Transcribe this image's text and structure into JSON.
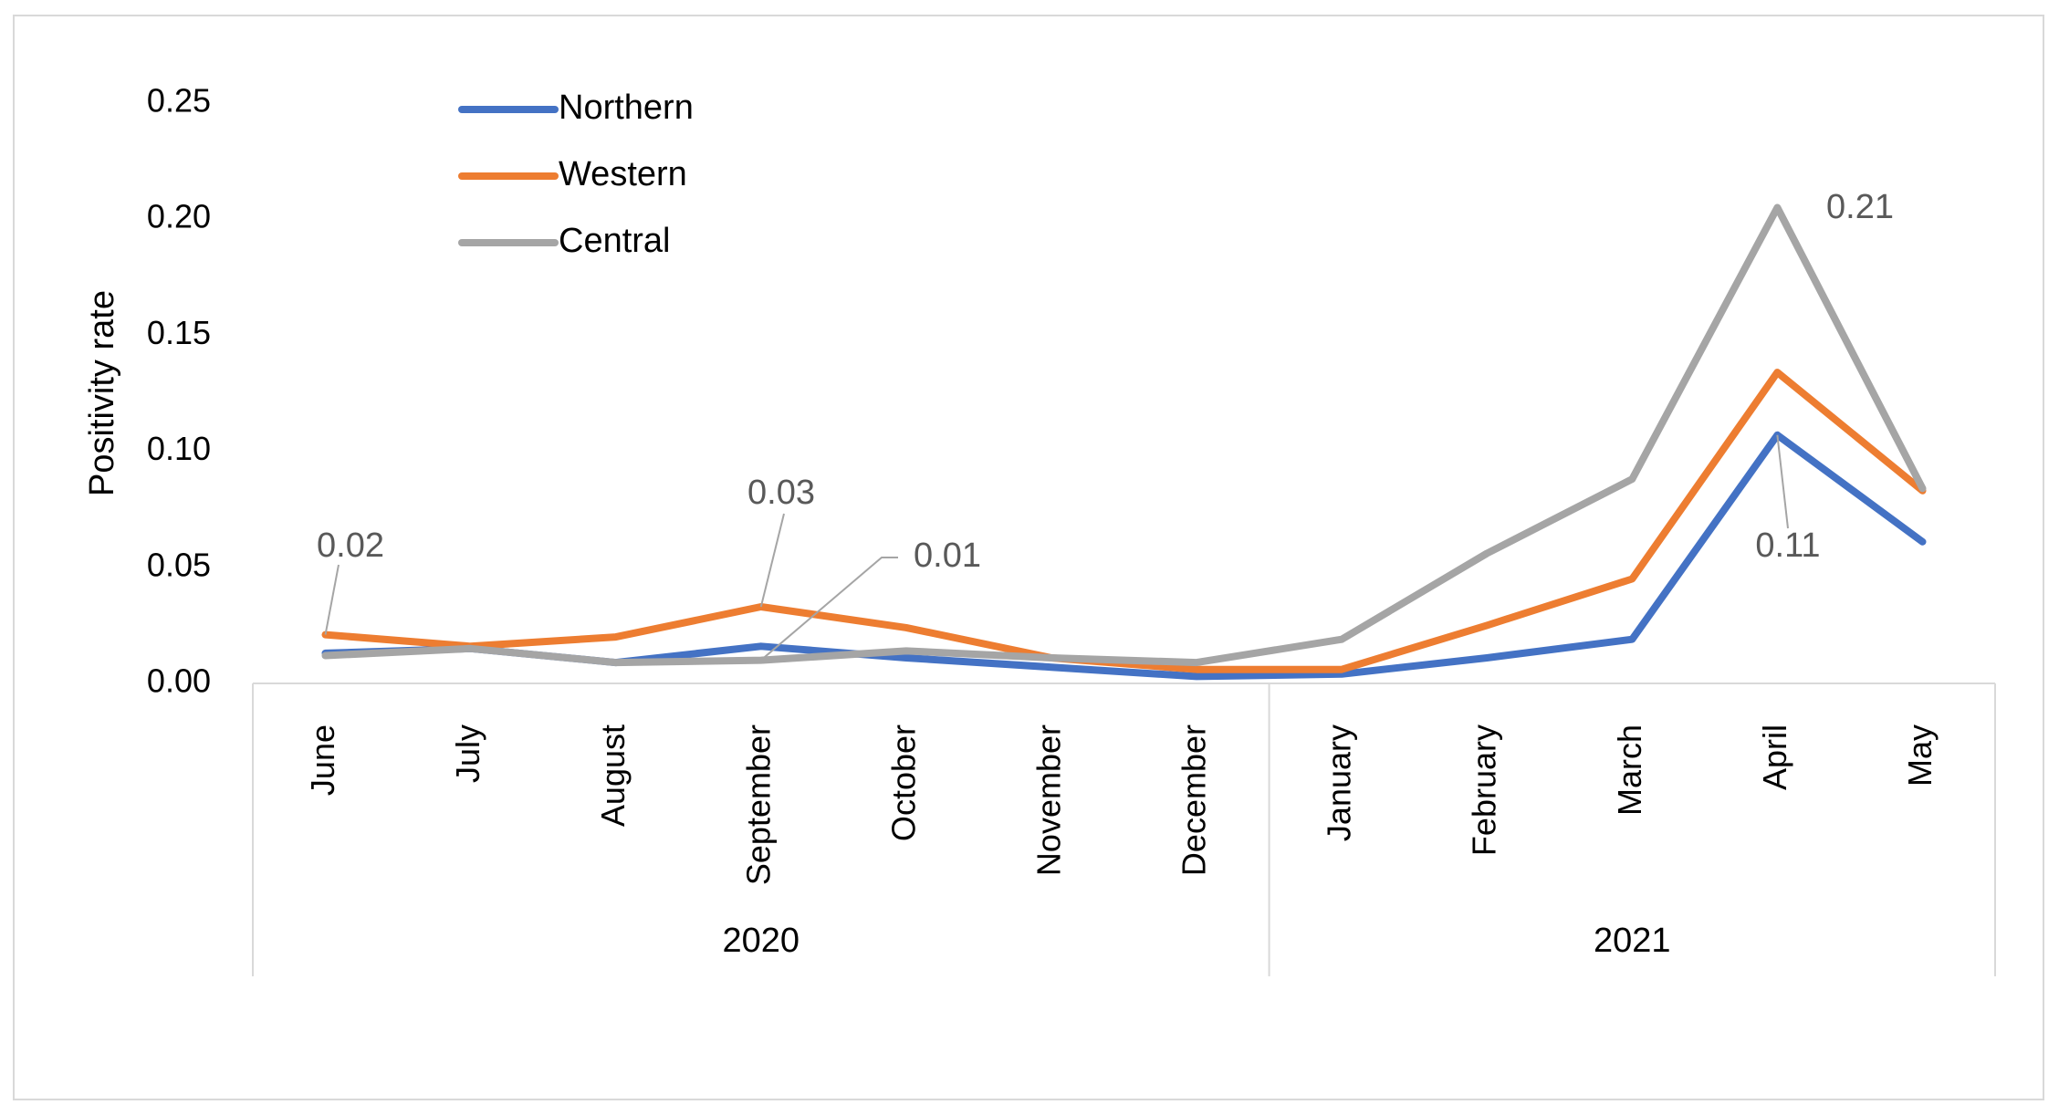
{
  "chart_data": {
    "type": "line",
    "title": "",
    "xlabel": "",
    "ylabel": "Positivity rate",
    "ylim": [
      0,
      0.25
    ],
    "yticks": [
      "0.00",
      "0.05",
      "0.10",
      "0.15",
      "0.20",
      "0.25"
    ],
    "categories": [
      "June",
      "July",
      "August",
      "September",
      "October",
      "November",
      "December",
      "January",
      "February",
      "March",
      "April",
      "May"
    ],
    "groups": [
      {
        "label": "2020",
        "span": 7
      },
      {
        "label": "2021",
        "span": 5
      }
    ],
    "series": [
      {
        "name": "Northern",
        "color": "#4472C4",
        "values": [
          0.013,
          0.015,
          0.009,
          0.016,
          0.011,
          0.007,
          0.003,
          0.004,
          0.011,
          0.019,
          0.107,
          0.061
        ]
      },
      {
        "name": "Western",
        "color": "#ED7D31",
        "values": [
          0.021,
          0.016,
          0.02,
          0.033,
          0.024,
          0.011,
          0.006,
          0.006,
          0.025,
          0.045,
          0.134,
          0.083
        ]
      },
      {
        "name": "Central",
        "color": "#A5A5A5",
        "values": [
          0.012,
          0.015,
          0.009,
          0.01,
          0.014,
          0.011,
          0.009,
          0.019,
          0.056,
          0.088,
          0.205,
          0.084
        ]
      }
    ],
    "data_labels": [
      {
        "text": "0.02",
        "series": "Western",
        "index": 0
      },
      {
        "text": "0.03",
        "series": "Western",
        "index": 3
      },
      {
        "text": "0.01",
        "series": "Central",
        "index": 3
      },
      {
        "text": "0.21",
        "series": "Central",
        "index": 10
      },
      {
        "text": "0.11",
        "series": "Northern",
        "index": 10
      }
    ],
    "legend": {
      "placement": "top-left"
    },
    "grid": false
  }
}
